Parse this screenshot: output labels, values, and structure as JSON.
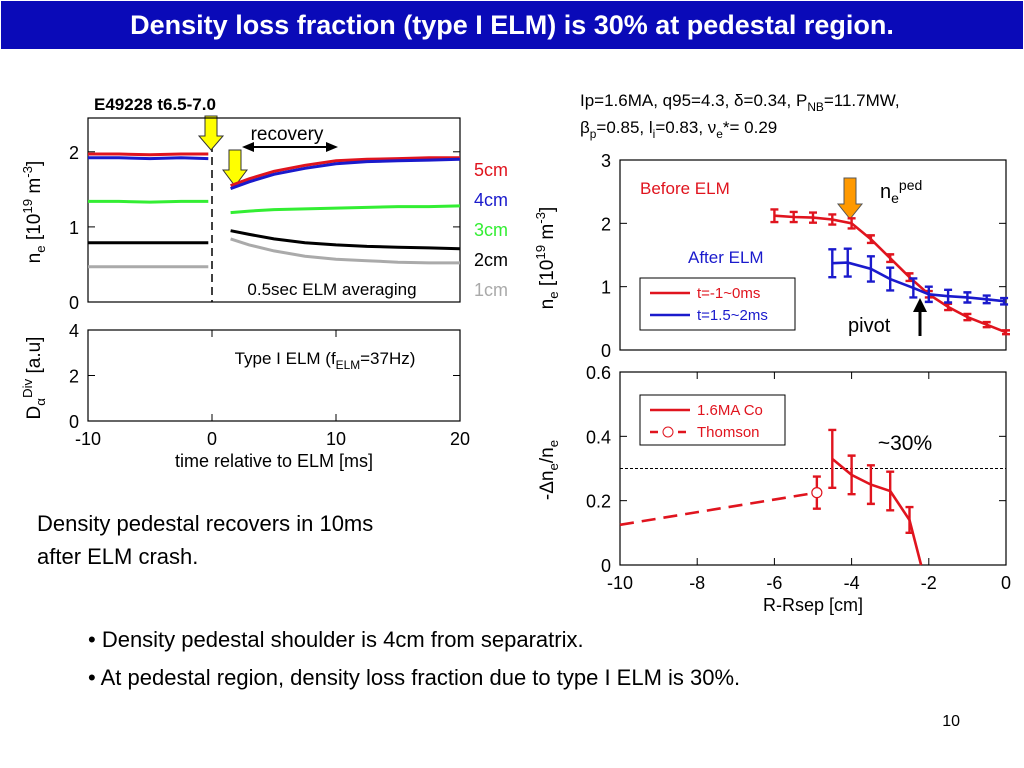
{
  "title": "Density loss fraction (type I ELM) is 30% at pedestal region.",
  "parameters": [
    [
      "Ip=1.6MA, q95=4.3, δ=0.34, P",
      "NB",
      "=11.7MW,"
    ],
    [
      "β",
      "p",
      "=0.85, l",
      "i",
      "=0.83, ν",
      "e",
      "*= 0.29"
    ]
  ],
  "notes": [
    "Density pedestal recovers in 10ms",
    "after ELM crash."
  ],
  "bullets": [
    "• Density pedestal shoulder is 4cm from separatrix.",
    "• At pedestal region, density loss fraction due to type I ELM is 30%."
  ],
  "page_number": "10",
  "chart_data": [
    {
      "type": "line",
      "title": "E49228 t6.5-7.0",
      "ylabel": [
        "n",
        "e",
        " [10",
        "19",
        " m",
        "-3",
        "]"
      ],
      "xlim": [
        -10,
        20
      ],
      "ylim": [
        0,
        2.45
      ],
      "yticks": [
        0,
        1,
        2
      ],
      "legend": "right",
      "x": [
        -10,
        -7.5,
        -5,
        -2.5,
        -0.3,
        0.5,
        1.5,
        3,
        5,
        7.5,
        10,
        12.5,
        15,
        17.5,
        20
      ],
      "series": [
        {
          "name": "5cm",
          "color": "#e0141e",
          "values": [
            1.97,
            1.97,
            1.96,
            1.97,
            1.97,
            null,
            1.55,
            1.64,
            1.74,
            1.82,
            1.88,
            1.9,
            1.91,
            1.92,
            1.92
          ]
        },
        {
          "name": "4cm",
          "color": "#1a1acc",
          "values": [
            1.92,
            1.92,
            1.91,
            1.92,
            1.91,
            null,
            1.51,
            1.6,
            1.7,
            1.78,
            1.84,
            1.87,
            1.88,
            1.89,
            1.9
          ]
        },
        {
          "name": "3cm",
          "color": "#33ee33",
          "values": [
            1.34,
            1.34,
            1.33,
            1.34,
            1.34,
            null,
            1.19,
            1.21,
            1.23,
            1.24,
            1.25,
            1.26,
            1.27,
            1.27,
            1.28
          ]
        },
        {
          "name": "2cm",
          "color": "#000000",
          "values": [
            0.79,
            0.79,
            0.79,
            0.79,
            0.79,
            null,
            0.95,
            0.9,
            0.84,
            0.79,
            0.76,
            0.74,
            0.73,
            0.72,
            0.71
          ]
        },
        {
          "name": "1cm",
          "color": "#aaaaaa",
          "values": [
            0.47,
            0.47,
            0.47,
            0.47,
            0.47,
            null,
            0.84,
            0.76,
            0.68,
            0.61,
            0.57,
            0.55,
            0.53,
            0.52,
            0.52
          ]
        }
      ],
      "annotations": [
        {
          "text": "recovery",
          "color": "#000000"
        },
        {
          "text": "0.5sec ELM averaging",
          "color": "#000000"
        }
      ]
    },
    {
      "type": "line",
      "ylabel": [
        "D",
        "α",
        "Div",
        " [a.u]"
      ],
      "xlabel": "time relative to ELM [ms]",
      "xlim": [
        -10,
        20
      ],
      "xticks": [
        -10,
        0,
        10,
        20
      ],
      "ylim": [
        0,
        4
      ],
      "yticks": [
        0,
        2,
        4
      ],
      "series": [],
      "annotations": [
        {
          "text": [
            "Type I ELM (f",
            "ELM",
            "=37Hz)"
          ],
          "color": "#000000"
        }
      ]
    },
    {
      "type": "errorbar",
      "ylabel": [
        "n",
        "e",
        " [10",
        "19",
        " m",
        "-3",
        "]"
      ],
      "xlim": [
        -10,
        0
      ],
      "ylim": [
        0,
        3
      ],
      "yticks": [
        0,
        1,
        2,
        3
      ],
      "legend": "center left",
      "series": [
        {
          "name": "t=-1~0ms",
          "color": "#e0141e",
          "x": [
            -6,
            -5.5,
            -5,
            -4.5,
            -4,
            -3.5,
            -3,
            -2.5,
            -2,
            -1.5,
            -1,
            -0.5,
            0
          ],
          "values": [
            2.12,
            2.1,
            2.09,
            2.06,
            2.0,
            1.75,
            1.45,
            1.15,
            0.88,
            0.68,
            0.52,
            0.4,
            0.28
          ],
          "errors": [
            0.1,
            0.08,
            0.08,
            0.08,
            0.08,
            0.06,
            0.06,
            0.06,
            0.05,
            0.05,
            0.05,
            0.04,
            0.03
          ]
        },
        {
          "name": "t=1.5~2ms",
          "color": "#1a1acc",
          "x": [
            -4.5,
            -4.1,
            -3.5,
            -3,
            -2.4,
            -2,
            -1.5,
            -1,
            -0.5,
            -0.05
          ],
          "values": [
            1.37,
            1.38,
            1.28,
            1.12,
            0.98,
            0.88,
            0.85,
            0.83,
            0.8,
            0.77
          ],
          "errors": [
            0.22,
            0.22,
            0.2,
            0.18,
            0.15,
            0.12,
            0.1,
            0.08,
            0.06,
            0.05
          ]
        }
      ],
      "annotations": [
        {
          "text": "Before ELM",
          "color": "#e0141e"
        },
        {
          "text": "After ELM",
          "color": "#1a1acc"
        },
        {
          "text": [
            "n",
            "e",
            "ped"
          ],
          "color": "#000000"
        },
        {
          "text": "pivot",
          "color": "#000000"
        }
      ]
    },
    {
      "type": "errorbar",
      "ylabel": [
        "-Δn",
        "e",
        "/n",
        "e"
      ],
      "xlabel": "R-Rsep [cm]",
      "xlim": [
        -10,
        0
      ],
      "xticks": [
        -10,
        -8,
        -6,
        -4,
        -2,
        0
      ],
      "ylim": [
        0,
        0.6
      ],
      "yticks": [
        0,
        0.2,
        0.4,
        0.6
      ],
      "legend": "upper left",
      "hline": 0.3,
      "series": [
        {
          "name": "1.6MA Co",
          "color": "#e0141e",
          "linestyle": "solid",
          "x": [
            -4.5,
            -4,
            -3.5,
            -3,
            -2.5,
            -2.2
          ],
          "values": [
            0.33,
            0.28,
            0.25,
            0.23,
            0.14,
            0
          ],
          "errors": [
            0.09,
            0.06,
            0.06,
            0.06,
            0.04,
            null
          ]
        },
        {
          "name": "Thomson",
          "color": "#e0141e",
          "linestyle": "dashed",
          "marker": "circle-open",
          "x": [
            -10,
            -4.9
          ],
          "values": [
            0.125,
            0.225
          ],
          "errors": [
            null,
            0.05
          ]
        }
      ],
      "annotations": [
        {
          "text": "~30%",
          "color": "#000000"
        }
      ]
    }
  ]
}
